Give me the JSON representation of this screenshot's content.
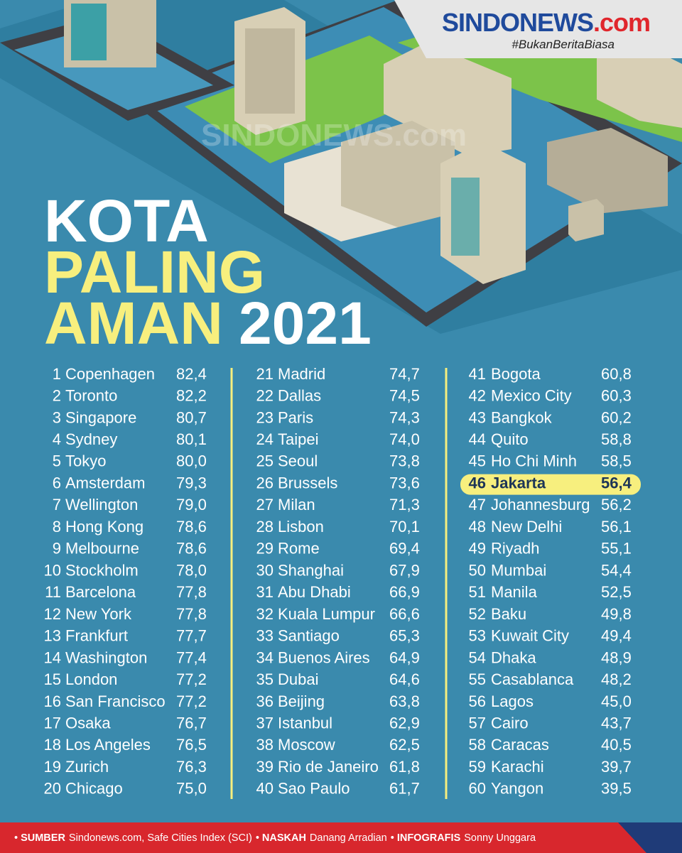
{
  "header": {
    "brand": "SINDONEWS",
    "brand_suffix": ".com",
    "tagline": "#BukanBeritaBiasa",
    "watermark": "SINDONEWS.com"
  },
  "title": {
    "line1": "KOTA",
    "line2": "PALING",
    "line3": "AMAN",
    "year": "2021"
  },
  "table": {
    "rows": [
      {
        "rank": 1,
        "city": "Copenhagen",
        "score": "82,4"
      },
      {
        "rank": 2,
        "city": "Toronto",
        "score": "82,2"
      },
      {
        "rank": 3,
        "city": "Singapore",
        "score": "80,7"
      },
      {
        "rank": 4,
        "city": "Sydney",
        "score": "80,1"
      },
      {
        "rank": 5,
        "city": "Tokyo",
        "score": "80,0"
      },
      {
        "rank": 6,
        "city": "Amsterdam",
        "score": "79,3"
      },
      {
        "rank": 7,
        "city": "Wellington",
        "score": "79,0"
      },
      {
        "rank": 8,
        "city": "Hong Kong",
        "score": "78,6"
      },
      {
        "rank": 9,
        "city": "Melbourne",
        "score": "78,6"
      },
      {
        "rank": 10,
        "city": "Stockholm",
        "score": "78,0"
      },
      {
        "rank": 11,
        "city": "Barcelona",
        "score": "77,8"
      },
      {
        "rank": 12,
        "city": "New York",
        "score": "77,8"
      },
      {
        "rank": 13,
        "city": "Frankfurt",
        "score": "77,7"
      },
      {
        "rank": 14,
        "city": "Washington",
        "score": "77,4"
      },
      {
        "rank": 15,
        "city": "London",
        "score": "77,2"
      },
      {
        "rank": 16,
        "city": "San Francisco",
        "score": "77,2"
      },
      {
        "rank": 17,
        "city": "Osaka",
        "score": "76,7"
      },
      {
        "rank": 18,
        "city": "Los Angeles",
        "score": "76,5"
      },
      {
        "rank": 19,
        "city": "Zurich",
        "score": "76,3"
      },
      {
        "rank": 20,
        "city": "Chicago",
        "score": "75,0"
      },
      {
        "rank": 21,
        "city": "Madrid",
        "score": "74,7"
      },
      {
        "rank": 22,
        "city": "Dallas",
        "score": "74,5"
      },
      {
        "rank": 23,
        "city": "Paris",
        "score": "74,3"
      },
      {
        "rank": 24,
        "city": "Taipei",
        "score": "74,0"
      },
      {
        "rank": 25,
        "city": "Seoul",
        "score": "73,8"
      },
      {
        "rank": 26,
        "city": "Brussels",
        "score": "73,6"
      },
      {
        "rank": 27,
        "city": "Milan",
        "score": "71,3"
      },
      {
        "rank": 28,
        "city": "Lisbon",
        "score": "70,1"
      },
      {
        "rank": 29,
        "city": "Rome",
        "score": "69,4"
      },
      {
        "rank": 30,
        "city": "Shanghai",
        "score": "67,9"
      },
      {
        "rank": 31,
        "city": "Abu Dhabi",
        "score": "66,9"
      },
      {
        "rank": 32,
        "city": "Kuala Lumpur",
        "score": "66,6"
      },
      {
        "rank": 33,
        "city": "Santiago",
        "score": "65,3"
      },
      {
        "rank": 34,
        "city": "Buenos Aires",
        "score": "64,9"
      },
      {
        "rank": 35,
        "city": "Dubai",
        "score": "64,6"
      },
      {
        "rank": 36,
        "city": "Beijing",
        "score": "63,8"
      },
      {
        "rank": 37,
        "city": "Istanbul",
        "score": "62,9"
      },
      {
        "rank": 38,
        "city": "Moscow",
        "score": "62,5"
      },
      {
        "rank": 39,
        "city": "Rio de Janeiro",
        "score": "61,8"
      },
      {
        "rank": 40,
        "city": "Sao Paulo",
        "score": "61,7"
      },
      {
        "rank": 41,
        "city": "Bogota",
        "score": "60,8"
      },
      {
        "rank": 42,
        "city": "Mexico City",
        "score": "60,3"
      },
      {
        "rank": 43,
        "city": "Bangkok",
        "score": "60,2"
      },
      {
        "rank": 44,
        "city": "Quito",
        "score": "58,8"
      },
      {
        "rank": 45,
        "city": "Ho Chi Minh",
        "score": "58,5"
      },
      {
        "rank": 46,
        "city": "Jakarta",
        "score": "56,4",
        "highlighted": true
      },
      {
        "rank": 47,
        "city": "Johannesburg",
        "score": "56,2"
      },
      {
        "rank": 48,
        "city": "New Delhi",
        "score": "56,1"
      },
      {
        "rank": 49,
        "city": "Riyadh",
        "score": "55,1"
      },
      {
        "rank": 50,
        "city": "Mumbai",
        "score": "54,4"
      },
      {
        "rank": 51,
        "city": "Manila",
        "score": "52,5"
      },
      {
        "rank": 52,
        "city": "Baku",
        "score": "49,8"
      },
      {
        "rank": 53,
        "city": "Kuwait City",
        "score": "49,4"
      },
      {
        "rank": 54,
        "city": "Dhaka",
        "score": "48,9"
      },
      {
        "rank": 55,
        "city": "Casablanca",
        "score": "48,2"
      },
      {
        "rank": 56,
        "city": "Lagos",
        "score": "45,0"
      },
      {
        "rank": 57,
        "city": "Cairo",
        "score": "43,7"
      },
      {
        "rank": 58,
        "city": "Caracas",
        "score": "40,5"
      },
      {
        "rank": 59,
        "city": "Karachi",
        "score": "39,7"
      },
      {
        "rank": 60,
        "city": "Yangon",
        "score": "39,5"
      }
    ]
  },
  "footer": {
    "source_label": "SUMBER",
    "source": "Sindonews.com, Safe Cities Index (SCI)",
    "writer_label": "NASKAH",
    "writer": "Danang Arradian",
    "graphics_label": "INFOGRAFIS",
    "graphics": "Sonny Unggara"
  }
}
